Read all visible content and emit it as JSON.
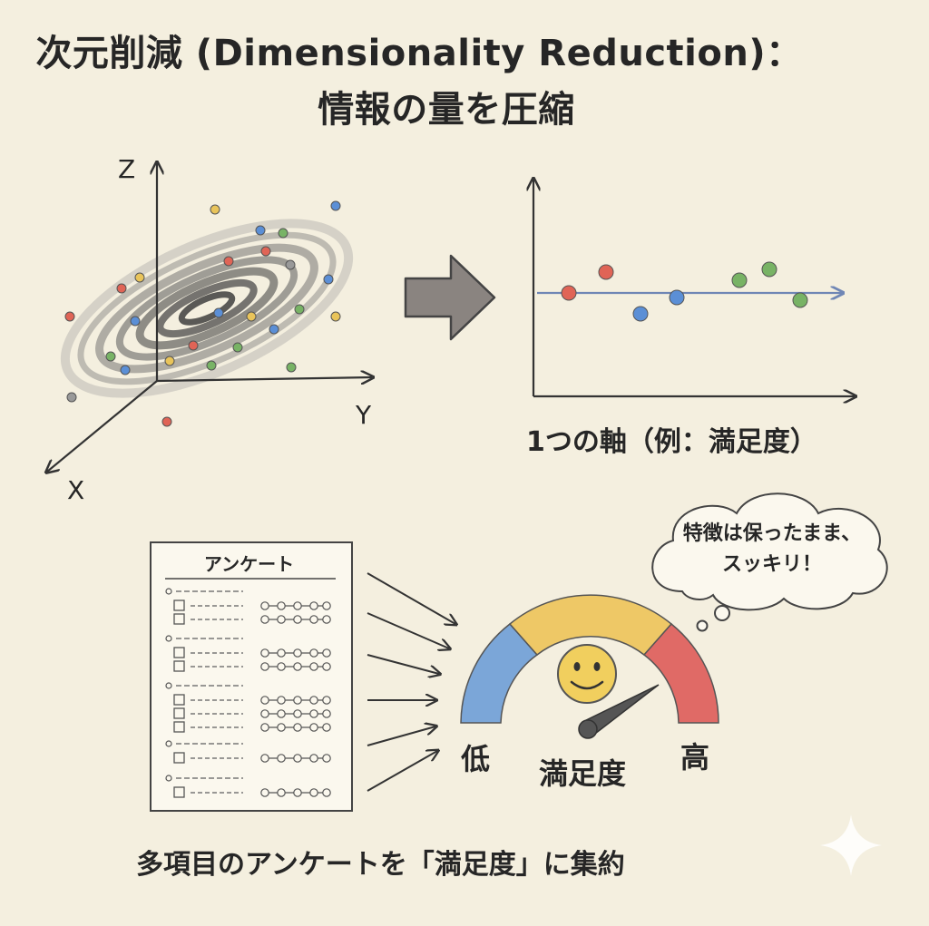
{
  "title": {
    "line1": "次元削減 (Dimensionality Reduction)：",
    "line2": "情報の量を圧縮"
  },
  "axes3d": {
    "z": "Z",
    "y": "Y",
    "x": "X"
  },
  "axis_caption": "1つの軸（例：満足度）",
  "survey": {
    "title": "アンケート"
  },
  "gauge": {
    "low": "低",
    "label": "満足度",
    "high": "高"
  },
  "bubble": {
    "line1": "特徴は保ったまま、",
    "line2": "スッキリ！"
  },
  "bottom_caption": "多項目のアンケートを「満足度」に集約",
  "colors": {
    "background": "#f4efdf",
    "red": "#e06456",
    "blue": "#5b8fd6",
    "green": "#78b365",
    "yellow": "#e9c45a",
    "gauge_blue": "#7ba6d8",
    "gauge_yellow": "#eec866",
    "gauge_red": "#e06a66"
  },
  "icons": [
    "right-arrow-icon",
    "smiley-face-icon",
    "gauge-needle-icon",
    "sparkle-icon"
  ]
}
